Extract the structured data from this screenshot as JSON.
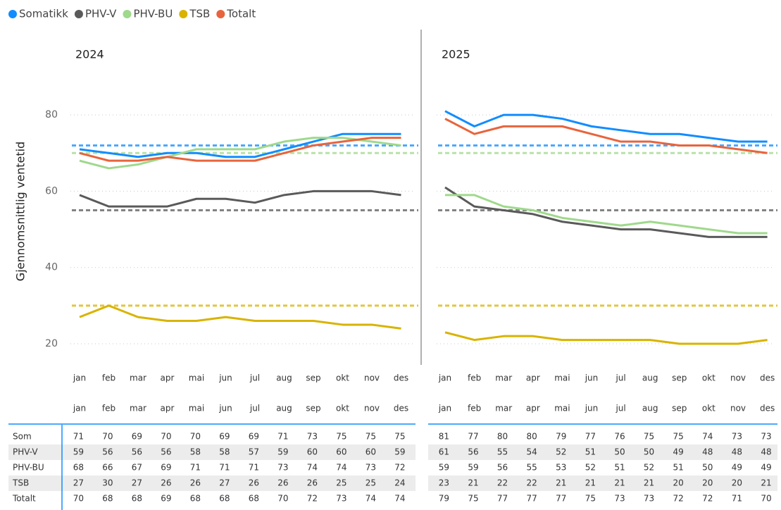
{
  "y_label": "Gjennomsnittlig ventetid",
  "chart_data": [
    {
      "type": "line",
      "title": "2024",
      "categories": [
        "jan",
        "feb",
        "mar",
        "apr",
        "mai",
        "jun",
        "jul",
        "aug",
        "sep",
        "okt",
        "nov",
        "des"
      ],
      "ylim": [
        14,
        90
      ],
      "yticks": [
        20,
        40,
        60,
        80
      ],
      "grid": true,
      "series": [
        {
          "name": "Somatikk",
          "table_label": "Som",
          "color": "#118dff",
          "target": 72,
          "values": [
            71,
            70,
            69,
            70,
            70,
            69,
            69,
            71,
            73,
            75,
            75,
            75
          ]
        },
        {
          "name": "PHV-V",
          "table_label": "PHV-V",
          "color": "#5a5a5a",
          "target": 55,
          "values": [
            59,
            56,
            56,
            56,
            58,
            58,
            57,
            59,
            60,
            60,
            60,
            59
          ]
        },
        {
          "name": "PHV-BU",
          "table_label": "PHV-BU",
          "color": "#9fd98c",
          "target": 70,
          "values": [
            68,
            66,
            67,
            69,
            71,
            71,
            71,
            73,
            74,
            74,
            73,
            72
          ]
        },
        {
          "name": "TSB",
          "table_label": "TSB",
          "color": "#d9b300",
          "target": 30,
          "values": [
            27,
            30,
            27,
            26,
            26,
            27,
            26,
            26,
            26,
            25,
            25,
            24
          ]
        },
        {
          "name": "Totalt",
          "table_label": "Totalt",
          "color": "#e8643c",
          "values": [
            70,
            68,
            68,
            69,
            68,
            68,
            68,
            70,
            72,
            73,
            74,
            74
          ]
        }
      ]
    },
    {
      "type": "line",
      "title": "2025",
      "categories": [
        "jan",
        "feb",
        "mar",
        "apr",
        "mai",
        "jun",
        "jul",
        "aug",
        "sep",
        "okt",
        "nov",
        "des"
      ],
      "ylim": [
        14,
        90
      ],
      "yticks": [
        20,
        40,
        60,
        80
      ],
      "grid": true,
      "series": [
        {
          "name": "Somatikk",
          "table_label": "Som",
          "color": "#118dff",
          "target": 72,
          "values": [
            81,
            77,
            80,
            80,
            79,
            77,
            76,
            75,
            75,
            74,
            73,
            73
          ]
        },
        {
          "name": "PHV-V",
          "table_label": "PHV-V",
          "color": "#5a5a5a",
          "target": 55,
          "values": [
            61,
            56,
            55,
            54,
            52,
            51,
            50,
            50,
            49,
            48,
            48,
            48
          ]
        },
        {
          "name": "PHV-BU",
          "table_label": "PHV-BU",
          "color": "#9fd98c",
          "target": 70,
          "values": [
            59,
            59,
            56,
            55,
            53,
            52,
            51,
            52,
            51,
            50,
            49,
            49
          ]
        },
        {
          "name": "TSB",
          "table_label": "TSB",
          "color": "#d9b300",
          "target": 30,
          "values": [
            23,
            21,
            22,
            22,
            21,
            21,
            21,
            21,
            20,
            20,
            20,
            21
          ]
        },
        {
          "name": "Totalt",
          "table_label": "Totalt",
          "color": "#e8643c",
          "values": [
            79,
            75,
            77,
            77,
            77,
            75,
            73,
            73,
            72,
            72,
            71,
            70
          ]
        }
      ]
    }
  ]
}
